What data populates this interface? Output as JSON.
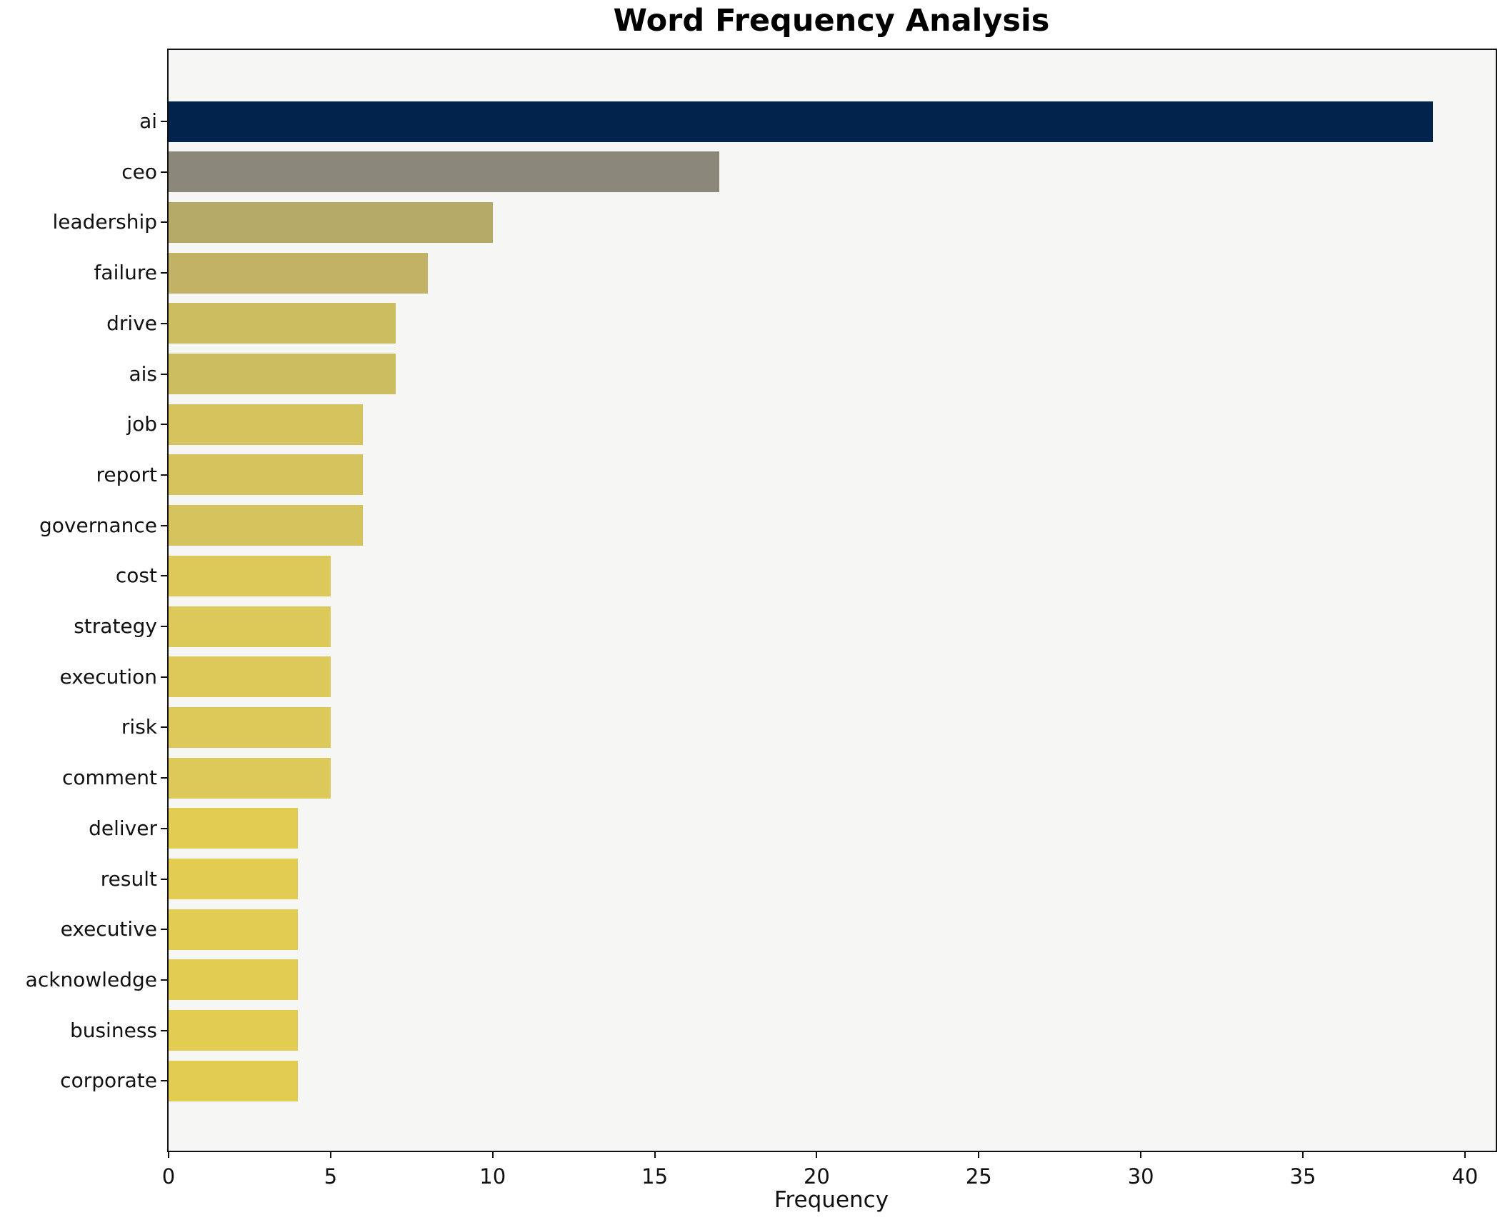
{
  "chart_data": {
    "type": "bar",
    "orientation": "horizontal",
    "title": "Word Frequency Analysis",
    "xlabel": "Frequency",
    "ylabel": "",
    "categories": [
      "ai",
      "ceo",
      "leadership",
      "failure",
      "drive",
      "ais",
      "job",
      "report",
      "governance",
      "cost",
      "strategy",
      "execution",
      "risk",
      "comment",
      "deliver",
      "result",
      "executive",
      "acknowledge",
      "business",
      "corporate"
    ],
    "values": [
      39,
      17,
      10,
      8,
      7,
      7,
      6,
      6,
      6,
      5,
      5,
      5,
      5,
      5,
      4,
      4,
      4,
      4,
      4,
      4
    ],
    "bar_colors": [
      "#01234c",
      "#8b887a",
      "#b6aa68",
      "#c2b266",
      "#cdbd61",
      "#cdbd61",
      "#d5c35e",
      "#d5c35e",
      "#d5c35e",
      "#ddc95a",
      "#ddc95a",
      "#ddc95a",
      "#ddc95a",
      "#ddc95a",
      "#e2cc51",
      "#e2cc51",
      "#e2cc51",
      "#e2cc51",
      "#e2cc51",
      "#e2cc51"
    ],
    "xlim": [
      0,
      40.95
    ],
    "xticks": [
      0,
      5,
      10,
      15,
      20,
      25,
      30,
      35,
      40
    ],
    "grid": false,
    "legend": null,
    "plot_bg": "#f6f6f5",
    "figure_bg": "#ffffff",
    "spine_color": "#111111",
    "accent_color_max": "#01234c",
    "accent_color_min": "#e2cc51"
  }
}
